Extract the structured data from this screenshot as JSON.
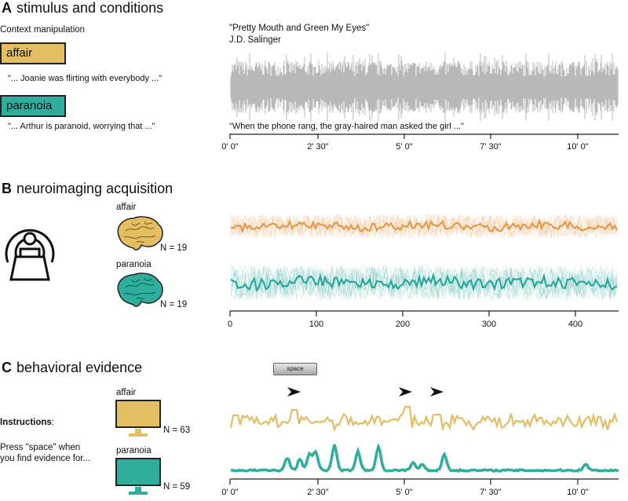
{
  "colors": {
    "affair": "#e3be63",
    "paranoia": "#2fae9e",
    "affair_line": "#e59a4a",
    "paranoia_line": "#2aa89a",
    "wave": "#b9b9b9",
    "ink": "#222222"
  },
  "panel_a": {
    "letter": "A",
    "title": "stimulus and conditions",
    "context_label": "Context manipulation",
    "affair_tag": "affair",
    "affair_quote": "\"... Joanie was flirting with everybody ...\"",
    "paranoia_tag": "paranoia",
    "paranoia_quote": "\"... Arthur is paranoid, worrying that ...\"",
    "story_title": "\"Pretty Mouth and Green My Eyes\"",
    "story_author": "J.D. Salinger",
    "story_quote": "\"When the phone rang, the gray-haired man asked the girl ...\"",
    "time_ticks": [
      "0' 0\"",
      "2' 30\"",
      "5' 0\"",
      "7' 30\"",
      "10' 0\""
    ]
  },
  "panel_b": {
    "letter": "B",
    "title": "neuroimaging acquisition",
    "affair_label": "affair",
    "affair_n": "N = 19",
    "paranoia_label": "paranoia",
    "paranoia_n": "N = 19",
    "tr_ticks": [
      "0",
      "100",
      "200",
      "300",
      "400"
    ]
  },
  "panel_c": {
    "letter": "C",
    "title": "behavioral evidence",
    "key_label": "space",
    "instructions_bold": "Instructions",
    "instructions_colon": ":",
    "instructions_line1": "Press \"space\" when",
    "instructions_line2": "you find evidence for...",
    "affair_label": "affair",
    "affair_n": "N = 63",
    "paranoia_label": "paranoia",
    "paranoia_n": "N = 59",
    "time_ticks": [
      "0' 0\"",
      "2' 30\"",
      "5' 0\"",
      "7' 30\"",
      "10' 0\""
    ]
  }
}
